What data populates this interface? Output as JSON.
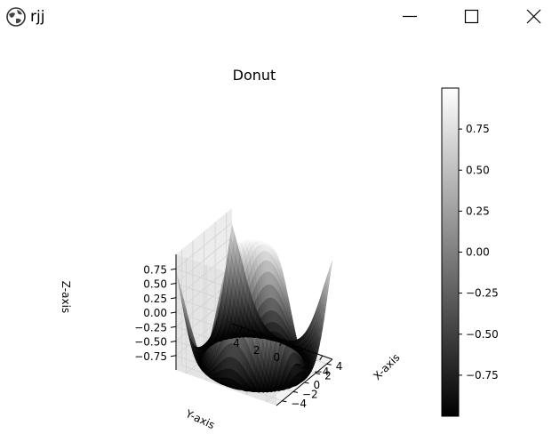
{
  "window": {
    "title": "rjj"
  },
  "icons": {
    "app": "app-globe-icon",
    "minimize": "minimize-icon",
    "maximize": "maximize-icon",
    "close": "close-icon"
  },
  "chart_data": {
    "type": "surface3d",
    "title": "Donut",
    "xlabel": "X-axis",
    "ylabel": "Y-axis",
    "zlabel": "Z-axis",
    "x_range": [
      -5,
      5
    ],
    "y_range": [
      -5,
      5
    ],
    "z_range": [
      -1,
      1
    ],
    "x_ticks": [
      "−4",
      "−2",
      "0",
      "2",
      "4"
    ],
    "y_ticks": [
      "4",
      "2",
      "0",
      "−2",
      "−4"
    ],
    "z_ticks": [
      "0.75",
      "0.50",
      "0.25",
      "0.00",
      "−0.25",
      "−0.50",
      "−0.75"
    ],
    "function": "z = sin(sqrt(x^2 + y^2))",
    "colormap": "gray",
    "grid": true,
    "colorbar": {
      "range": [
        -1,
        1
      ],
      "ticks": [
        "0.75",
        "0.50",
        "0.25",
        "0.00",
        "−0.25",
        "−0.50",
        "−0.75"
      ],
      "placement": "right"
    }
  }
}
